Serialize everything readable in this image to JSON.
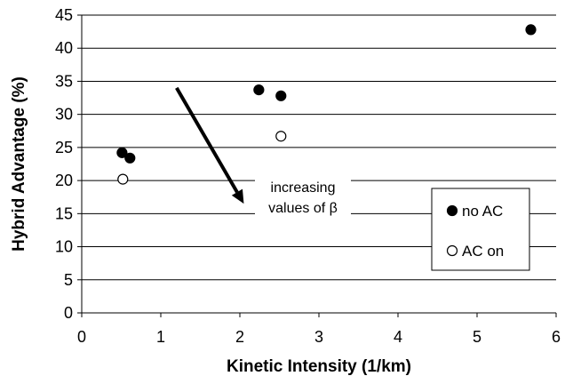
{
  "chart_data": {
    "type": "scatter",
    "title": "",
    "xlabel": "Kinetic Intensity (1/km)",
    "ylabel": "Hybrid Advantage (%)",
    "xlim": [
      0,
      6
    ],
    "ylim": [
      0,
      45
    ],
    "x_ticks": [
      "0",
      "1",
      "2",
      "3",
      "4",
      "5",
      "6"
    ],
    "y_ticks": [
      "0",
      "5",
      "10",
      "15",
      "20",
      "25",
      "30",
      "35",
      "40",
      "45"
    ],
    "grid": "horizontal",
    "legend_position": "right",
    "series": [
      {
        "name": "no AC",
        "marker": "filled-circle",
        "color": "#000000",
        "points": [
          {
            "x": 0.51,
            "y": 24.2
          },
          {
            "x": 0.61,
            "y": 23.4
          },
          {
            "x": 2.24,
            "y": 33.7
          },
          {
            "x": 2.52,
            "y": 32.8
          },
          {
            "x": 5.68,
            "y": 42.8
          }
        ]
      },
      {
        "name": "AC on",
        "marker": "open-circle",
        "color": "#000000",
        "points": [
          {
            "x": 0.52,
            "y": 20.2
          },
          {
            "x": 2.52,
            "y": 26.7
          }
        ]
      }
    ],
    "annotation": {
      "line1": "increasing",
      "line2": "values of β",
      "arrow_from": {
        "x": 1.2,
        "y": 34
      },
      "arrow_to": {
        "x": 2.05,
        "y": 16.5
      }
    }
  }
}
